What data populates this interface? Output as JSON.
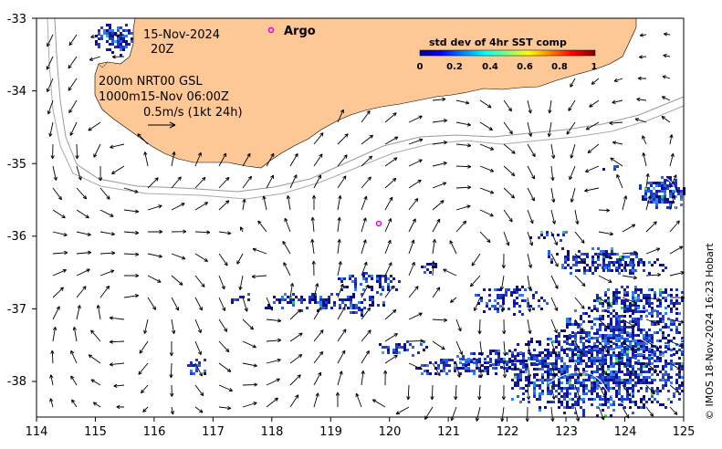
{
  "map": {
    "date_label": "15-Nov-2024",
    "time_label": "20Z",
    "depth_info": "200m  NRT00 GSL",
    "depth_info2": "1000m15-Nov 06:00Z",
    "scale_label": "0.5m/s (1kt 24h)",
    "argo_label": "Argo",
    "colorbar": {
      "title": "std dev of 4hr SST comp",
      "ticks": [
        "0",
        "0.2",
        "0.4",
        "0.6",
        "0.8",
        "1"
      ]
    },
    "credit": "© IMOS 18-Nov-2024 16:23 Hobart",
    "lon_ticks": [
      "114",
      "115",
      "116",
      "117",
      "118",
      "119",
      "120",
      "121",
      "122",
      "123",
      "124",
      "125"
    ],
    "lat_ticks": [
      "-33",
      "-34",
      "-35",
      "-36",
      "-37",
      "-38"
    ]
  },
  "colors": {
    "land": "#fdc896",
    "ocean": "#ffffff",
    "isobath": "#999999",
    "argo": "#e000e0",
    "sst_dark": "#1a1aa8",
    "sst_mid": "#2860e0"
  }
}
